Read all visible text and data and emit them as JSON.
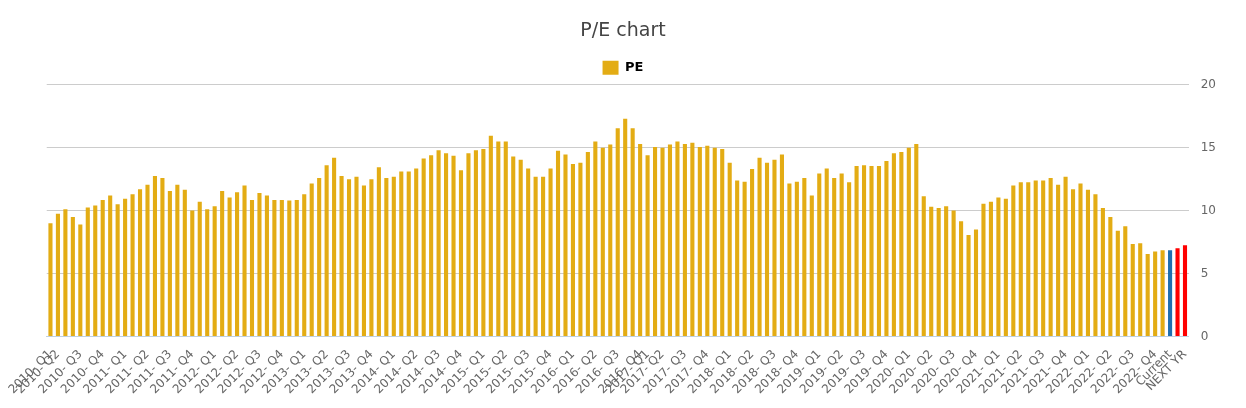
{
  "chart_data": {
    "type": "bar",
    "title": "P/E chart",
    "categories": [
      "2010- Q1",
      "2010- Q2",
      null,
      null,
      "2010- Q3",
      null,
      null,
      "2010- Q4",
      null,
      null,
      "2011- Q1",
      null,
      null,
      "2011- Q2",
      null,
      null,
      "2011- Q3",
      null,
      null,
      "2011- Q4",
      null,
      null,
      "2012- Q1",
      null,
      null,
      "2012- Q2",
      null,
      null,
      "2012- Q3",
      null,
      null,
      "2012- Q4",
      null,
      null,
      "2013- Q1",
      null,
      null,
      "2013- Q2",
      null,
      null,
      "2013- Q3",
      null,
      null,
      "2013- Q4",
      null,
      null,
      "2014- Q1",
      null,
      null,
      "2014- Q2",
      null,
      null,
      "2014- Q3",
      null,
      null,
      "2014- Q4",
      null,
      null,
      "2015- Q1",
      null,
      null,
      "2015- Q2",
      null,
      null,
      "2015- Q3",
      null,
      null,
      "2015- Q4",
      null,
      null,
      "2016- Q1",
      null,
      null,
      "2016- Q2",
      null,
      null,
      "2016- Q3",
      null,
      null,
      "2016- Q4",
      "2017- Q1",
      null,
      "2017- Q2",
      null,
      null,
      "2017- Q3",
      null,
      null,
      "2017- Q4",
      null,
      null,
      "2018- Q1",
      null,
      null,
      "2018- Q2",
      null,
      null,
      "2018- Q3",
      null,
      null,
      "2018- Q4",
      null,
      null,
      "2019- Q1",
      null,
      null,
      "2019- Q2",
      null,
      null,
      "2019- Q3",
      null,
      null,
      "2019- Q4",
      null,
      null,
      "2020- Q1",
      null,
      null,
      "2020- Q2",
      null,
      null,
      "2020- Q3",
      null,
      null,
      "2020- Q4",
      null,
      null,
      "2021- Q1",
      null,
      null,
      "2021- Q2",
      null,
      null,
      "2021- Q3",
      null,
      null,
      "2021- Q4",
      null,
      null,
      "2022- Q1",
      null,
      null,
      "2022- Q2",
      null,
      null,
      "2022- Q3",
      null,
      null,
      "2022- Q4",
      null,
      "Current",
      null,
      "NEXT YR"
    ],
    "series": [
      {
        "name": "PE",
        "color": "#e3ac14",
        "values": [
          9.0,
          9.75,
          10.1,
          9.5,
          8.9,
          10.25,
          10.4,
          10.85,
          11.2,
          10.5,
          10.95,
          11.3,
          11.7,
          12.05,
          12.75,
          12.6,
          11.55,
          12.05,
          11.65,
          10.0,
          10.7,
          10.1,
          10.35,
          11.55,
          11.05,
          11.45,
          12.0,
          10.85,
          11.4,
          11.2,
          10.85,
          10.85,
          10.8,
          10.85,
          11.3,
          12.15,
          12.6,
          13.6,
          14.2,
          12.75,
          12.5,
          12.7,
          12.0,
          12.5,
          13.45,
          12.6,
          12.7,
          13.1,
          13.1,
          13.35,
          14.15,
          14.4,
          14.8,
          14.55,
          14.35,
          13.2,
          14.55,
          14.8,
          14.9,
          15.95,
          15.5,
          15.5,
          14.3,
          14.05,
          13.35,
          12.7,
          12.7,
          13.35,
          14.75,
          14.45,
          13.7,
          13.8,
          14.65,
          15.5,
          15.0,
          15.25,
          16.55,
          17.3,
          16.55,
          15.3,
          14.4,
          15.05,
          15.0,
          15.25,
          15.5,
          15.3,
          15.4,
          15.05,
          15.15,
          15.0,
          14.9,
          13.8,
          12.4,
          12.3,
          13.3,
          14.2,
          13.8,
          14.05,
          14.45,
          12.15,
          12.3,
          12.6,
          11.2,
          12.95,
          13.35,
          12.6,
          12.95,
          12.25,
          13.55,
          13.6,
          13.55,
          13.55,
          13.95,
          14.55,
          14.65,
          15.0,
          15.3,
          11.15,
          10.3,
          10.2,
          10.35,
          10.0,
          9.15,
          8.05,
          8.5,
          10.55,
          10.7,
          11.05,
          10.95,
          12.0,
          12.25,
          12.25,
          12.4,
          12.4,
          12.6,
          12.05,
          12.7,
          11.7,
          12.15,
          11.65,
          11.3,
          10.2,
          9.5,
          8.4,
          8.75,
          7.35,
          7.4,
          6.55,
          6.75,
          6.85,
          6.85,
          7.0,
          7.25
        ],
        "colors": [
          "#e3ac14",
          "#e3ac14",
          "#e3ac14",
          "#e3ac14",
          "#e3ac14",
          "#e3ac14",
          "#e3ac14",
          "#e3ac14",
          "#e3ac14",
          "#e3ac14",
          "#e3ac14",
          "#e3ac14",
          "#e3ac14",
          "#e3ac14",
          "#e3ac14",
          "#e3ac14",
          "#e3ac14",
          "#e3ac14",
          "#e3ac14",
          "#e3ac14",
          "#e3ac14",
          "#e3ac14",
          "#e3ac14",
          "#e3ac14",
          "#e3ac14",
          "#e3ac14",
          "#e3ac14",
          "#e3ac14",
          "#e3ac14",
          "#e3ac14",
          "#e3ac14",
          "#e3ac14",
          "#e3ac14",
          "#e3ac14",
          "#e3ac14",
          "#e3ac14",
          "#e3ac14",
          "#e3ac14",
          "#e3ac14",
          "#e3ac14",
          "#e3ac14",
          "#e3ac14",
          "#e3ac14",
          "#e3ac14",
          "#e3ac14",
          "#e3ac14",
          "#e3ac14",
          "#e3ac14",
          "#e3ac14",
          "#e3ac14",
          "#e3ac14",
          "#e3ac14",
          "#e3ac14",
          "#e3ac14",
          "#e3ac14",
          "#e3ac14",
          "#e3ac14",
          "#e3ac14",
          "#e3ac14",
          "#e3ac14",
          "#e3ac14",
          "#e3ac14",
          "#e3ac14",
          "#e3ac14",
          "#e3ac14",
          "#e3ac14",
          "#e3ac14",
          "#e3ac14",
          "#e3ac14",
          "#e3ac14",
          "#e3ac14",
          "#e3ac14",
          "#e3ac14",
          "#e3ac14",
          "#e3ac14",
          "#e3ac14",
          "#e3ac14",
          "#e3ac14",
          "#e3ac14",
          "#e3ac14",
          "#e3ac14",
          "#e3ac14",
          "#e3ac14",
          "#e3ac14",
          "#e3ac14",
          "#e3ac14",
          "#e3ac14",
          "#e3ac14",
          "#e3ac14",
          "#e3ac14",
          "#e3ac14",
          "#e3ac14",
          "#e3ac14",
          "#e3ac14",
          "#e3ac14",
          "#e3ac14",
          "#e3ac14",
          "#e3ac14",
          "#e3ac14",
          "#e3ac14",
          "#e3ac14",
          "#e3ac14",
          "#e3ac14",
          "#e3ac14",
          "#e3ac14",
          "#e3ac14",
          "#e3ac14",
          "#e3ac14",
          "#e3ac14",
          "#e3ac14",
          "#e3ac14",
          "#e3ac14",
          "#e3ac14",
          "#e3ac14",
          "#e3ac14",
          "#e3ac14",
          "#e3ac14",
          "#e3ac14",
          "#e3ac14",
          "#e3ac14",
          "#e3ac14",
          "#e3ac14",
          "#e3ac14",
          "#e3ac14",
          "#e3ac14",
          "#e3ac14",
          "#e3ac14",
          "#e3ac14",
          "#e3ac14",
          "#e3ac14",
          "#e3ac14",
          "#e3ac14",
          "#e3ac14",
          "#e3ac14",
          "#e3ac14",
          "#e3ac14",
          "#e3ac14",
          "#e3ac14",
          "#e3ac14",
          "#e3ac14",
          "#e3ac14",
          "#e3ac14",
          "#e3ac14",
          "#e3ac14",
          "#e3ac14",
          "#e3ac14",
          "#e3ac14",
          "#e3ac14",
          "#e3ac14",
          "#e3ac14",
          "#1f6fb0",
          "#ff0000",
          "#ff0000"
        ]
      }
    ],
    "ylim": [
      0,
      20
    ],
    "yticks": [
      0,
      5,
      10,
      15,
      20
    ],
    "grid": true,
    "legend": "top"
  }
}
